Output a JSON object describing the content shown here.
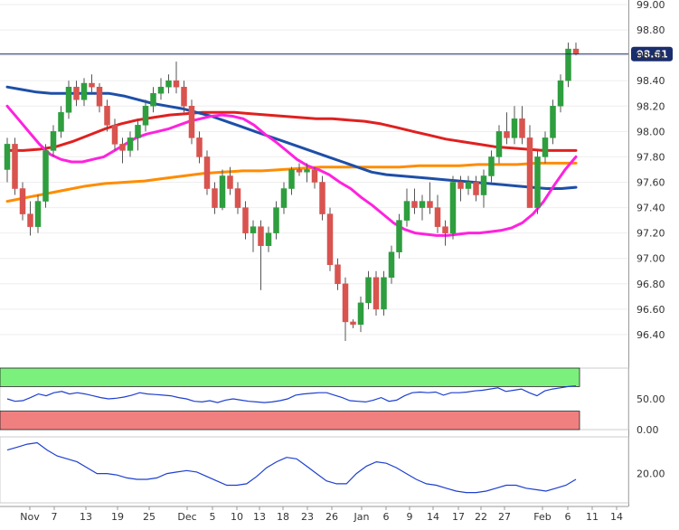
{
  "chart_data": [
    {
      "type": "candlestick",
      "panel": "price",
      "ylim": [
        96.2,
        99.0
      ],
      "y_ticks": [
        "99.00",
        "98.80",
        "98.60",
        "98.40",
        "98.20",
        "98.00",
        "97.80",
        "97.60",
        "97.40",
        "97.20",
        "97.00",
        "96.80",
        "96.60",
        "96.40"
      ],
      "x_ticks": [
        "Nov",
        "7",
        "13",
        "19",
        "25",
        "Dec",
        "5",
        "10",
        "13",
        "18",
        "23",
        "26",
        "Jan",
        "6",
        "9",
        "14",
        "17",
        "22",
        "27",
        "Feb",
        "6",
        "11",
        "14"
      ],
      "current_price_label": "98.61",
      "current_price": 98.61,
      "colors": {
        "up": "#2e9e3e",
        "down": "#d9534f",
        "ma_20": "#ff22dd",
        "ma_50": "#1e4fa8",
        "ma_100": "#e02020",
        "ma_200": "#ff8c00",
        "price_line": "#1a2e6e"
      },
      "candles": [
        [
          97.7,
          97.95,
          97.6,
          97.9
        ],
        [
          97.9,
          97.95,
          97.5,
          97.55
        ],
        [
          97.55,
          97.6,
          97.3,
          97.35
        ],
        [
          97.35,
          97.45,
          97.18,
          97.25
        ],
        [
          97.25,
          97.5,
          97.2,
          97.45
        ],
        [
          97.45,
          97.9,
          97.4,
          97.85
        ],
        [
          97.85,
          98.05,
          97.8,
          98.0
        ],
        [
          98.0,
          98.2,
          97.95,
          98.15
        ],
        [
          98.15,
          98.4,
          98.1,
          98.35
        ],
        [
          98.35,
          98.4,
          98.2,
          98.25
        ],
        [
          98.25,
          98.42,
          98.2,
          98.38
        ],
        [
          98.38,
          98.45,
          98.3,
          98.35
        ],
        [
          98.35,
          98.38,
          98.15,
          98.2
        ],
        [
          98.2,
          98.25,
          98.0,
          98.05
        ],
        [
          98.05,
          98.1,
          97.85,
          97.9
        ],
        [
          97.9,
          97.95,
          97.75,
          97.85
        ],
        [
          97.85,
          98.0,
          97.8,
          97.95
        ],
        [
          97.95,
          98.1,
          97.85,
          98.05
        ],
        [
          98.05,
          98.25,
          98.0,
          98.2
        ],
        [
          98.2,
          98.35,
          98.15,
          98.3
        ],
        [
          98.3,
          98.42,
          98.25,
          98.35
        ],
        [
          98.35,
          98.45,
          98.3,
          98.4
        ],
        [
          98.4,
          98.55,
          98.3,
          98.35
        ],
        [
          98.35,
          98.4,
          98.15,
          98.2
        ],
        [
          98.2,
          98.25,
          97.9,
          97.95
        ],
        [
          97.95,
          98.0,
          97.75,
          97.8
        ],
        [
          97.8,
          97.85,
          97.5,
          97.55
        ],
        [
          97.55,
          97.6,
          97.35,
          97.4
        ],
        [
          97.4,
          97.7,
          97.38,
          97.65
        ],
        [
          97.65,
          97.72,
          97.5,
          97.55
        ],
        [
          97.55,
          97.6,
          97.35,
          97.4
        ],
        [
          97.4,
          97.45,
          97.15,
          97.2
        ],
        [
          97.2,
          97.3,
          97.05,
          97.25
        ],
        [
          97.25,
          97.3,
          96.75,
          97.1
        ],
        [
          97.1,
          97.25,
          97.05,
          97.2
        ],
        [
          97.2,
          97.45,
          97.15,
          97.4
        ],
        [
          97.4,
          97.6,
          97.35,
          97.55
        ],
        [
          97.55,
          97.72,
          97.5,
          97.7
        ],
        [
          97.7,
          97.75,
          97.65,
          97.68
        ],
        [
          97.68,
          97.75,
          97.6,
          97.7
        ],
        [
          97.7,
          97.72,
          97.55,
          97.6
        ],
        [
          97.6,
          97.65,
          97.3,
          97.35
        ],
        [
          97.35,
          97.4,
          96.9,
          96.95
        ],
        [
          96.95,
          97.0,
          96.75,
          96.8
        ],
        [
          96.8,
          96.85,
          96.35,
          96.5
        ],
        [
          96.5,
          96.52,
          96.45,
          96.48
        ],
        [
          96.48,
          96.7,
          96.42,
          96.65
        ],
        [
          96.65,
          96.9,
          96.6,
          96.85
        ],
        [
          96.85,
          96.9,
          96.55,
          96.6
        ],
        [
          96.6,
          96.9,
          96.55,
          96.85
        ],
        [
          96.85,
          97.1,
          96.8,
          97.05
        ],
        [
          97.05,
          97.35,
          97.0,
          97.3
        ],
        [
          97.3,
          97.55,
          97.25,
          97.45
        ],
        [
          97.45,
          97.55,
          97.35,
          97.4
        ],
        [
          97.4,
          97.5,
          97.3,
          97.45
        ],
        [
          97.45,
          97.6,
          97.35,
          97.4
        ],
        [
          97.4,
          97.5,
          97.2,
          97.25
        ],
        [
          97.25,
          97.3,
          97.1,
          97.2
        ],
        [
          97.2,
          97.65,
          97.15,
          97.6
        ],
        [
          97.6,
          97.65,
          97.45,
          97.55
        ],
        [
          97.55,
          97.65,
          97.5,
          97.6
        ],
        [
          97.6,
          97.65,
          97.45,
          97.5
        ],
        [
          97.5,
          97.7,
          97.4,
          97.65
        ],
        [
          97.65,
          97.85,
          97.6,
          97.8
        ],
        [
          97.8,
          98.05,
          97.75,
          98.0
        ],
        [
          98.0,
          98.15,
          97.9,
          97.95
        ],
        [
          97.95,
          98.2,
          97.9,
          98.1
        ],
        [
          98.1,
          98.2,
          97.9,
          97.95
        ],
        [
          97.95,
          98.05,
          97.4,
          97.4
        ],
        [
          97.4,
          97.85,
          97.35,
          97.8
        ],
        [
          97.8,
          98.0,
          97.75,
          97.95
        ],
        [
          97.95,
          98.25,
          97.9,
          98.2
        ],
        [
          98.2,
          98.45,
          98.15,
          98.4
        ],
        [
          98.4,
          98.7,
          98.35,
          98.65
        ],
        [
          98.65,
          98.7,
          98.6,
          98.61
        ]
      ],
      "ma_20": [
        98.2,
        98.1,
        98.0,
        97.9,
        97.82,
        97.78,
        97.76,
        97.76,
        97.78,
        97.8,
        97.85,
        97.9,
        97.95,
        97.98,
        98.0,
        98.02,
        98.05,
        98.08,
        98.1,
        98.12,
        98.13,
        98.12,
        98.1,
        98.05,
        97.98,
        97.92,
        97.85,
        97.78,
        97.73,
        97.7,
        97.66,
        97.6,
        97.55,
        97.48,
        97.42,
        97.35,
        97.28,
        97.23,
        97.2,
        97.19,
        97.18,
        97.18,
        97.19,
        97.2,
        97.2,
        97.21,
        97.22,
        97.24,
        97.28,
        97.35,
        97.45,
        97.58,
        97.7,
        97.8
      ],
      "ma_50": [
        98.35,
        98.33,
        98.31,
        98.3,
        98.3,
        98.3,
        98.3,
        98.3,
        98.28,
        98.25,
        98.22,
        98.2,
        98.18,
        98.15,
        98.12,
        98.08,
        98.04,
        98.0,
        97.96,
        97.92,
        97.88,
        97.84,
        97.8,
        97.76,
        97.72,
        97.68,
        97.66,
        97.65,
        97.64,
        97.63,
        97.62,
        97.61,
        97.6,
        97.59,
        97.58,
        97.57,
        97.56,
        97.55,
        97.55,
        97.56
      ],
      "ma_100": [
        97.85,
        97.85,
        97.86,
        97.88,
        97.92,
        97.97,
        98.02,
        98.06,
        98.09,
        98.11,
        98.13,
        98.14,
        98.15,
        98.15,
        98.15,
        98.14,
        98.13,
        98.12,
        98.11,
        98.1,
        98.1,
        98.09,
        98.08,
        98.06,
        98.03,
        98.0,
        97.97,
        97.94,
        97.92,
        97.9,
        97.88,
        97.87,
        97.86,
        97.85,
        97.85,
        97.85
      ],
      "ma_200": [
        97.45,
        97.48,
        97.51,
        97.54,
        97.57,
        97.59,
        97.6,
        97.61,
        97.63,
        97.65,
        97.67,
        97.68,
        97.69,
        97.69,
        97.7,
        97.71,
        97.72,
        97.72,
        97.72,
        97.72,
        97.72,
        97.73,
        97.73,
        97.73,
        97.74,
        97.74,
        97.74,
        97.75,
        97.75,
        97.75
      ]
    },
    {
      "type": "line",
      "panel": "rsi",
      "ylim": [
        0,
        100
      ],
      "y_ticks": [
        "50.00",
        "0.00"
      ],
      "overbought": 70,
      "oversold": 30,
      "colors": {
        "line": "#1e3fd0",
        "overbought_zone": "#7cf07c",
        "oversold_zone": "#f08080"
      },
      "values": [
        50,
        46,
        47,
        52,
        58,
        55,
        60,
        62,
        58,
        60,
        58,
        55,
        52,
        50,
        51,
        53,
        56,
        60,
        58,
        57,
        56,
        55,
        52,
        50,
        46,
        45,
        47,
        44,
        48,
        50,
        48,
        46,
        45,
        44,
        45,
        47,
        50,
        56,
        58,
        59,
        60,
        60,
        56,
        52,
        47,
        46,
        45,
        48,
        52,
        46,
        48,
        55,
        60,
        61,
        60,
        61,
        56,
        60,
        60,
        61,
        63,
        64,
        66,
        68,
        62,
        64,
        66,
        60,
        55,
        63,
        66,
        68,
        70,
        71
      ]
    },
    {
      "type": "line",
      "panel": "oscillator",
      "ylim": [
        0,
        45
      ],
      "y_ticks": [
        "20.00"
      ],
      "colors": {
        "line": "#1e3fd0"
      },
      "values": [
        36,
        38,
        40,
        41,
        36,
        32,
        30,
        28,
        24,
        20,
        20,
        19,
        17,
        16,
        16,
        17,
        20,
        21,
        22,
        21,
        18,
        15,
        12,
        12,
        13,
        18,
        24,
        28,
        31,
        30,
        25,
        20,
        15,
        13,
        13,
        20,
        25,
        28,
        27,
        24,
        20,
        16,
        13,
        12,
        10,
        8,
        7,
        7,
        8,
        10,
        12,
        12,
        10,
        9,
        8,
        10,
        12,
        16
      ]
    }
  ]
}
